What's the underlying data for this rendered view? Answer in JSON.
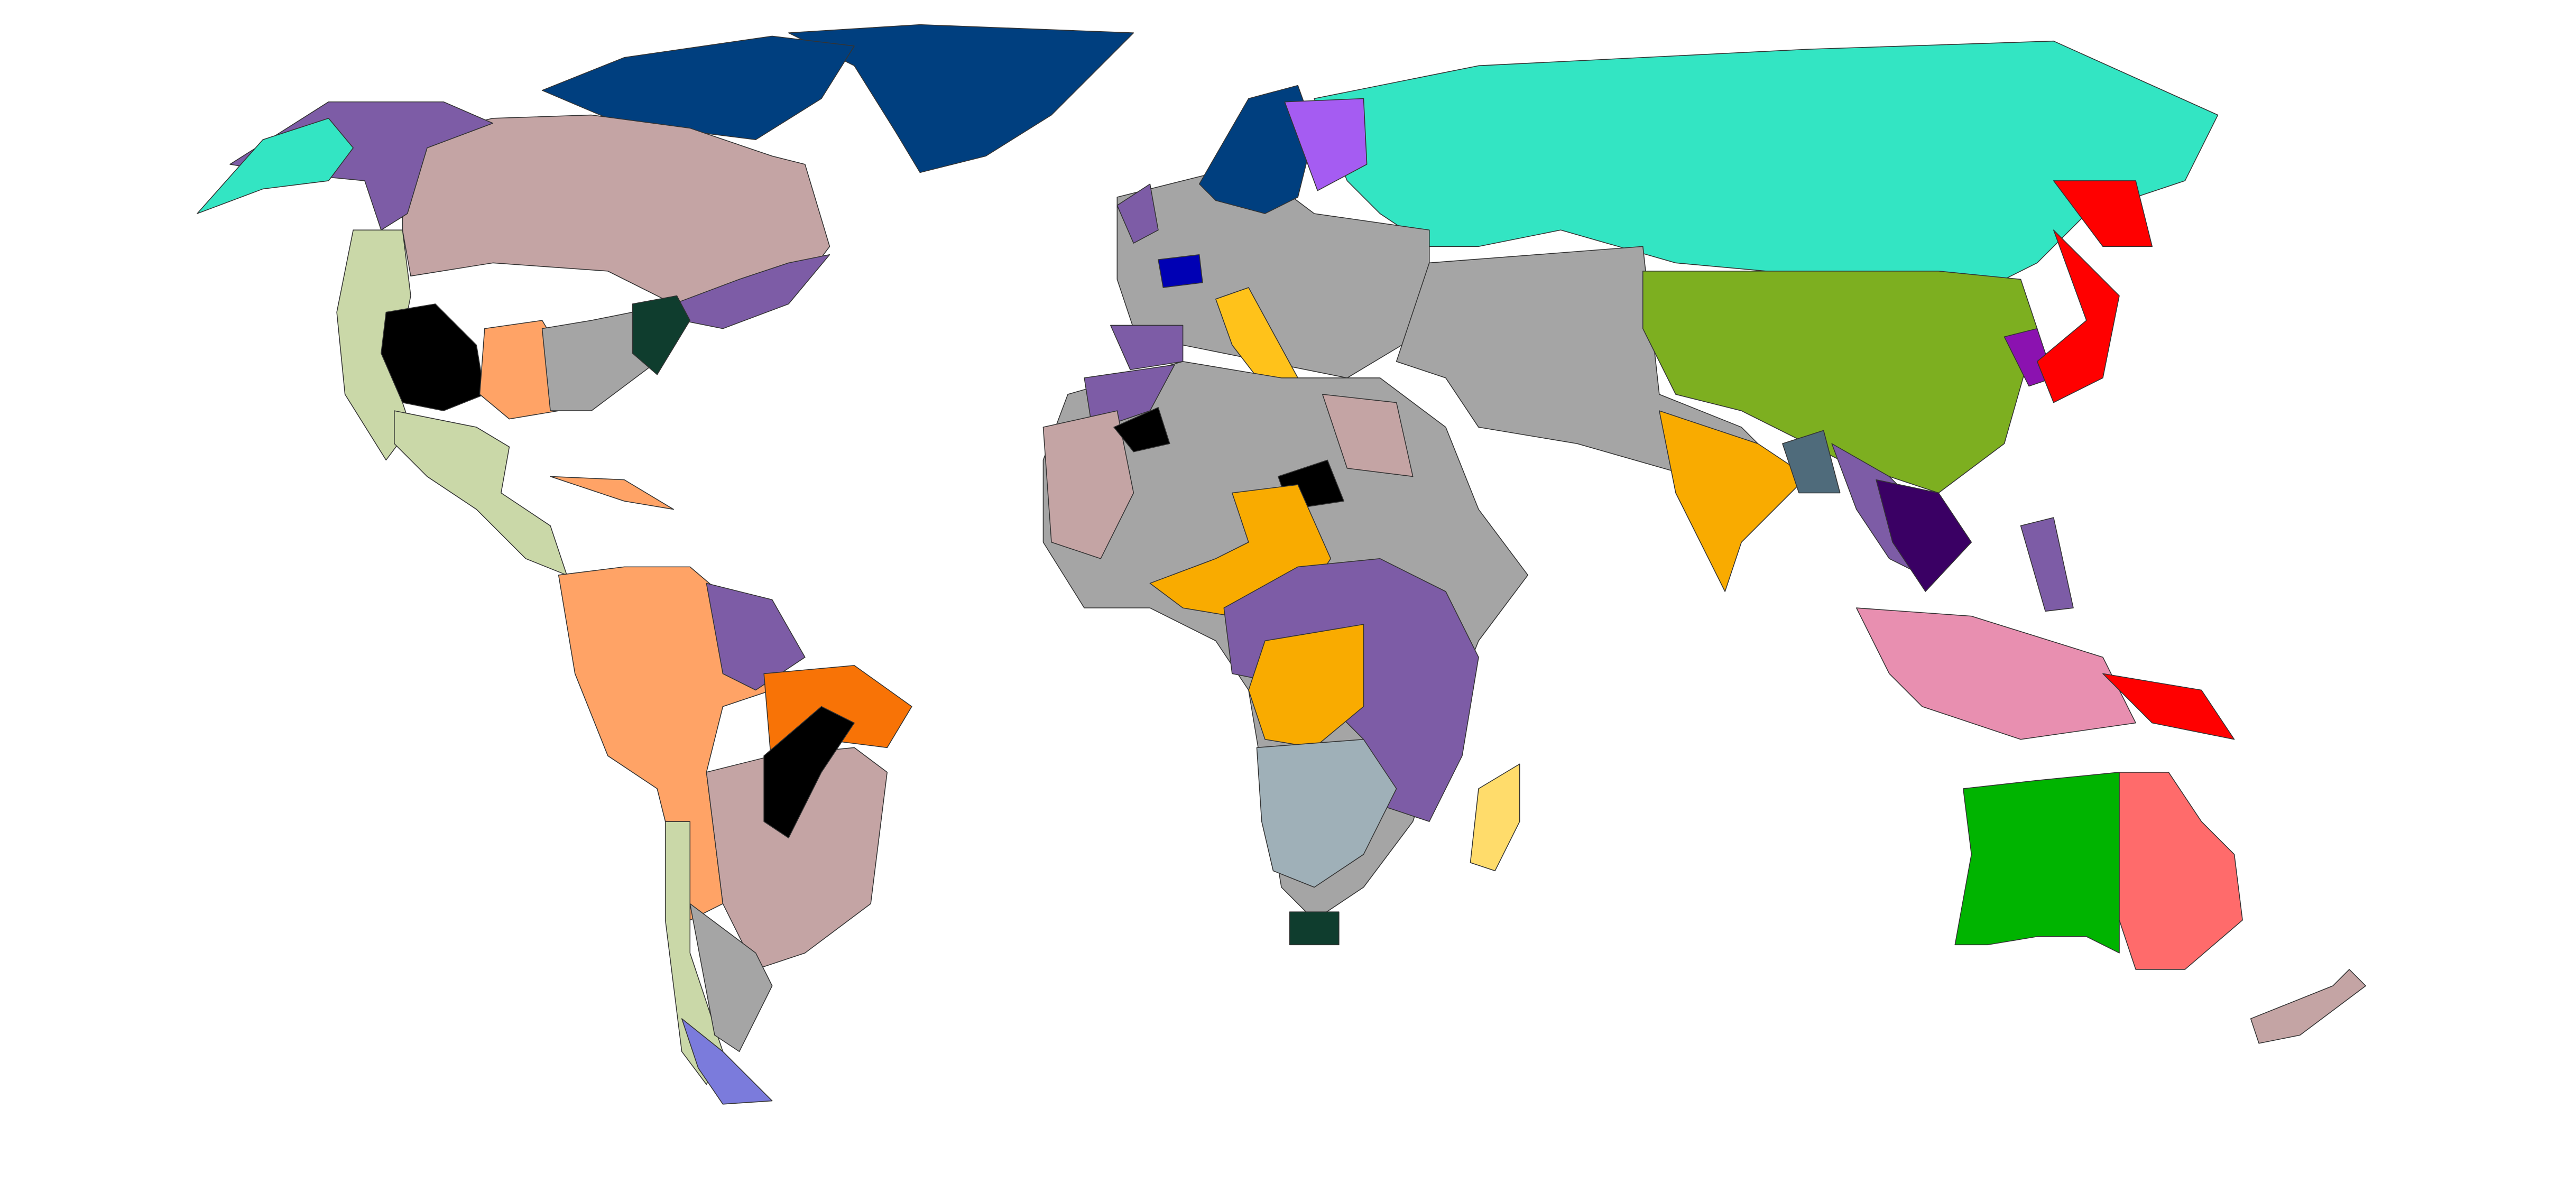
{
  "map": {
    "ocean_color": "#ffffff",
    "colors": {
      "alaska": "#33e5c3",
      "nw_canada": "#7d5ca6",
      "canada": "#c4a4a4",
      "arctic_islands": "#003f7f",
      "greenland": "#003f7f",
      "quebec": "#7d5ca6",
      "us_west": "#cad8a8",
      "us_black": "#000000",
      "us_texas": "#ffa366",
      "us_southeast": "#a5a5a5",
      "us_northeast": "#0f3d2e",
      "mexico": "#cad8a8",
      "caribbean": "#ffa366",
      "south_america": "#ffa366",
      "guianas": "#7d5ca6",
      "brazil_ne": "#f87306",
      "brazil_south": "#c4a4a4",
      "chile": "#cad8a8",
      "argentina": "#a5a5a5",
      "patagonia": "#7b7bdc",
      "brazil_black": "#000000",
      "europe": "#a5a5a5",
      "scandinavia": "#003f7f",
      "finland": "#a55cf2",
      "iberia": "#7d5ca6",
      "france": "#0000b4",
      "italy": "#ffc21a",
      "uk": "#7d5ca6",
      "russia": "#33e5c3",
      "middle_east": "#a5a5a5",
      "china": "#7daf20",
      "korea": "#8b12b0",
      "japan": "#ff0000",
      "india": "#f9ab00",
      "indochina": "#7d5ca6",
      "vietnam_laos": "#3a0064",
      "burma": "#4f6b7b",
      "indonesia": "#e88fb0",
      "philippines": "#7d5ca6",
      "new_guinea": "#ff0000",
      "australia_west": "#00b400",
      "australia_east": "#ff6b6b",
      "new_zealand": "#c4a4a4",
      "africa": "#a5a5a5",
      "africa_west": "#c4a4a4",
      "egypt": "#c4a4a4",
      "africa_central": "#f9ab00",
      "africa_east": "#7d5ca6",
      "congo": "#f9ab00",
      "southern_africa": "#9fb0b8",
      "madagascar": "#ffdc6b",
      "south_africa": "#0f3d2e",
      "sahara_black": "#000000",
      "morocco": "#7d5ca6"
    }
  }
}
